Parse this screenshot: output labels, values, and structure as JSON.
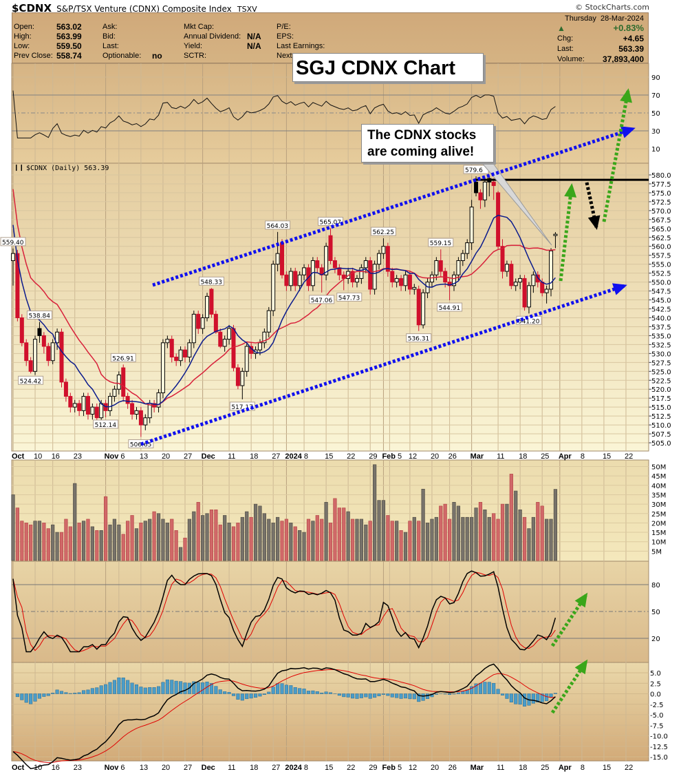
{
  "header": {
    "symbol": "$CDNX",
    "name": "S&P/TSX Venture (CDNX) Composite Index",
    "exchange": "TSXV",
    "watermark": "© StockCharts.com",
    "col1": [
      {
        "label": "Open:",
        "value": "563.02"
      },
      {
        "label": "High:",
        "value": "563.99"
      },
      {
        "label": "Low:",
        "value": "559.50"
      },
      {
        "label": "Prev Close:",
        "value": "558.74"
      }
    ],
    "col2": [
      {
        "label": "Ask:",
        "value": ""
      },
      {
        "label": "Bid:",
        "value": ""
      },
      {
        "label": "Last:",
        "value": ""
      },
      {
        "label": "Optionable:",
        "value": "no"
      }
    ],
    "col3": [
      {
        "label": "Mkt Cap:",
        "value": ""
      },
      {
        "label": "Annual Dividend:",
        "value": "N/A"
      },
      {
        "label": "Yield:",
        "value": "N/A"
      },
      {
        "label": "SCTR:",
        "value": ""
      }
    ],
    "col4": [
      {
        "label": "P/E:"
      },
      {
        "label": "EPS:"
      },
      {
        "label": "Last Earnings:"
      },
      {
        "label": "Next"
      }
    ],
    "day": "Thursday",
    "date": "28-Mar-2024",
    "pct_change": "+0.83%",
    "trend_icon": "triangle-up",
    "chg_label": "Chg:",
    "chg": "+4.65",
    "last_label": "Last:",
    "last": "563.39",
    "volume_label": "Volume:",
    "volume": "37,893,400"
  },
  "annotations": {
    "title_box": "SGJ CDNX Chart",
    "callout_line1": "The CDNX stocks",
    "callout_line2": "are coming alive!"
  },
  "colors": {
    "down": "#d0102c",
    "up": "#000000",
    "ma_fast": "#0a1a8c",
    "ma_slow": "#d8203a",
    "channel_arrows": "#1010ee",
    "bullish_arrows": "#3aa61a",
    "bearish_arrow": "#000000",
    "volume_down": "#d06868",
    "volume_up": "#77726a",
    "macd_hist": "#4a9cc8"
  },
  "chart_data": {
    "type": "candlestick",
    "legend": "$CDNX (Daily) 563.39",
    "ylim": [
      505,
      580
    ],
    "y_ticks": [
      "580.0",
      "577.5",
      "575.0",
      "572.5",
      "570.0",
      "567.5",
      "565.0",
      "562.5",
      "560.0",
      "557.5",
      "555.0",
      "552.5",
      "550.0",
      "547.5",
      "545.0",
      "542.5",
      "540.0",
      "537.5",
      "535.0",
      "532.5",
      "530.0",
      "527.5",
      "525.0",
      "522.5",
      "520.0",
      "517.5",
      "515.0",
      "512.5",
      "510.0",
      "507.5",
      "505.0"
    ],
    "x_ticks": [
      {
        "label": "Oct",
        "day": 0,
        "bold": true
      },
      {
        "label": "10",
        "day": 5
      },
      {
        "label": "16",
        "day": 9
      },
      {
        "label": "23",
        "day": 14
      },
      {
        "label": "Nov",
        "day": 21,
        "bold": true
      },
      {
        "label": "6",
        "day": 24
      },
      {
        "label": "13",
        "day": 29
      },
      {
        "label": "20",
        "day": 34
      },
      {
        "label": "27",
        "day": 39
      },
      {
        "label": "Dec",
        "day": 43,
        "bold": true
      },
      {
        "label": "11",
        "day": 49
      },
      {
        "label": "18",
        "day": 54
      },
      {
        "label": "27",
        "day": 59
      },
      {
        "label": "2024",
        "day": 62,
        "bold": true
      },
      {
        "label": "8",
        "day": 66
      },
      {
        "label": "15",
        "day": 71
      },
      {
        "label": "22",
        "day": 76
      },
      {
        "label": "29",
        "day": 81
      },
      {
        "label": "Feb",
        "day": 84,
        "bold": true
      },
      {
        "label": "5",
        "day": 85.4
      },
      {
        "label": "12",
        "day": 90
      },
      {
        "label": "20",
        "day": 95
      },
      {
        "label": "26",
        "day": 99
      },
      {
        "label": "Mar",
        "day": 104,
        "bold": true
      },
      {
        "label": "11",
        "day": 110
      },
      {
        "label": "18",
        "day": 115
      },
      {
        "label": "25",
        "day": 120
      },
      {
        "label": "Apr",
        "day": 124,
        "bold": true
      },
      {
        "label": "8",
        "day": 129
      },
      {
        "label": "15",
        "day": 134
      },
      {
        "label": "22",
        "day": 139
      }
    ],
    "ohlc": [
      [
        556,
        559.4,
        549,
        558
      ],
      [
        558,
        559,
        539,
        540
      ],
      [
        540,
        541,
        532,
        533
      ],
      [
        533,
        534,
        526.5,
        528
      ],
      [
        528,
        529,
        524.42,
        525
      ],
      [
        525,
        535,
        524,
        534
      ],
      [
        537,
        538.84,
        533,
        535
      ],
      [
        535,
        536,
        530,
        532
      ],
      [
        532,
        533,
        526.5,
        528
      ],
      [
        528,
        534,
        527,
        533
      ],
      [
        533,
        537,
        531,
        536
      ],
      [
        536,
        537,
        520.5,
        522
      ],
      [
        522,
        523,
        516.5,
        518
      ],
      [
        518,
        519,
        513.5,
        515
      ],
      [
        515,
        517,
        513.5,
        516
      ],
      [
        516,
        517,
        512.5,
        514
      ],
      [
        514,
        519,
        512.5,
        518
      ],
      [
        518,
        519,
        511.5,
        513
      ],
      [
        513,
        516,
        511.5,
        515
      ],
      [
        515,
        516,
        510.5,
        512
      ],
      [
        512,
        517,
        510.5,
        516
      ],
      [
        516,
        517,
        512.14,
        514
      ],
      [
        514,
        519,
        512.5,
        518
      ],
      [
        518,
        521,
        516.5,
        520
      ],
      [
        520,
        525,
        518.5,
        524
      ],
      [
        526,
        526.91,
        516.5,
        518
      ],
      [
        518,
        519,
        514.5,
        516
      ],
      [
        516,
        517,
        511.5,
        513
      ],
      [
        513,
        515,
        511.5,
        514
      ],
      [
        514,
        515,
        506.65,
        510
      ],
      [
        510,
        513,
        508.5,
        512
      ],
      [
        512,
        517,
        510.5,
        516
      ],
      [
        516,
        517,
        513.5,
        515
      ],
      [
        515,
        520,
        513.5,
        519
      ],
      [
        519,
        534,
        517.5,
        533
      ],
      [
        533,
        535,
        531.5,
        534
      ],
      [
        534,
        535,
        527.5,
        529
      ],
      [
        529,
        530,
        526.5,
        528
      ],
      [
        528,
        532,
        526.5,
        531
      ],
      [
        531,
        532,
        527.5,
        529
      ],
      [
        529,
        534,
        527.5,
        533
      ],
      [
        533,
        542,
        531.5,
        541
      ],
      [
        541,
        542,
        535.5,
        537
      ],
      [
        537,
        541,
        535.5,
        540
      ],
      [
        540,
        547,
        539,
        546
      ],
      [
        548,
        548.33,
        540,
        541
      ],
      [
        541,
        542,
        535.5,
        536
      ],
      [
        536,
        537,
        531.5,
        532
      ],
      [
        532,
        535,
        530.5,
        534
      ],
      [
        534,
        538,
        532.5,
        537
      ],
      [
        537,
        538,
        525,
        526
      ],
      [
        526,
        527,
        520,
        521
      ],
      [
        521,
        526,
        517.17,
        525
      ],
      [
        525,
        533,
        523.5,
        532
      ],
      [
        532,
        533,
        528.5,
        530
      ],
      [
        530,
        532,
        528.5,
        531
      ],
      [
        531,
        534,
        529.5,
        533
      ],
      [
        533,
        537,
        531.5,
        536
      ],
      [
        536,
        543,
        534.5,
        542
      ],
      [
        542,
        556,
        540.5,
        555
      ],
      [
        555,
        564.03,
        553,
        558
      ],
      [
        561,
        562,
        551,
        552
      ],
      [
        552,
        553,
        547.5,
        549
      ],
      [
        549,
        554,
        547.5,
        553
      ],
      [
        553,
        554,
        547.5,
        549
      ],
      [
        549,
        553,
        547.5,
        552
      ],
      [
        552,
        555,
        550.5,
        554
      ],
      [
        554,
        555,
        547.5,
        549
      ],
      [
        549,
        557,
        547.5,
        556
      ],
      [
        556,
        557,
        552.5,
        554
      ],
      [
        554,
        555,
        547.06,
        552
      ],
      [
        552,
        561,
        550.5,
        560
      ],
      [
        563,
        565.07,
        555,
        556
      ],
      [
        556,
        557,
        552.5,
        554
      ],
      [
        554,
        555,
        550.5,
        552
      ],
      [
        552,
        553,
        547.73,
        551
      ],
      [
        551,
        554,
        549.5,
        553
      ],
      [
        553,
        554,
        548.5,
        550
      ],
      [
        550,
        552,
        548.5,
        551
      ],
      [
        551,
        555,
        549.5,
        554
      ],
      [
        554,
        557,
        552.5,
        556
      ],
      [
        556,
        557,
        546.5,
        548
      ],
      [
        548,
        556,
        546.5,
        555
      ],
      [
        555,
        559,
        553.5,
        558
      ],
      [
        558,
        562.25,
        556.5,
        560
      ],
      [
        560,
        561,
        551.5,
        553
      ],
      [
        553,
        554,
        548.5,
        550
      ],
      [
        550,
        552,
        548.5,
        551
      ],
      [
        551,
        552,
        547.5,
        549
      ],
      [
        549,
        553,
        547.5,
        552
      ],
      [
        552,
        553,
        546.5,
        548
      ],
      [
        548,
        549.5,
        546.5,
        548.5
      ],
      [
        548,
        549,
        536.31,
        538
      ],
      [
        538,
        548,
        537,
        547
      ],
      [
        547,
        551,
        545.5,
        550
      ],
      [
        550,
        553,
        548.5,
        552
      ],
      [
        552,
        557,
        550.5,
        556
      ],
      [
        556,
        559.15,
        551.5,
        553
      ],
      [
        553,
        554,
        548.5,
        550
      ],
      [
        550,
        551,
        544.91,
        549
      ],
      [
        549,
        553,
        547.5,
        552
      ],
      [
        552,
        557,
        550.5,
        556
      ],
      [
        556,
        559,
        554.5,
        558
      ],
      [
        558,
        562,
        556.5,
        561
      ],
      [
        561,
        573,
        559,
        571
      ],
      [
        578,
        579.6,
        574,
        575
      ],
      [
        575,
        576,
        570.5,
        573
      ],
      [
        573,
        579,
        571,
        578
      ],
      [
        579,
        579.6,
        574,
        578
      ],
      [
        578,
        579,
        573,
        577
      ],
      [
        575,
        575.5,
        559,
        560
      ],
      [
        560,
        562,
        551,
        553
      ],
      [
        553,
        556,
        551.5,
        555
      ],
      [
        555,
        556,
        548,
        549
      ],
      [
        549,
        551,
        547.5,
        550
      ],
      [
        550,
        552,
        548,
        551
      ],
      [
        551,
        552,
        542,
        543
      ],
      [
        543,
        550,
        541.2,
        549
      ],
      [
        549,
        553,
        547,
        552
      ],
      [
        552,
        553,
        548.5,
        550
      ],
      [
        550,
        551,
        546,
        547
      ],
      [
        547,
        549,
        544,
        548
      ],
      [
        548,
        559.5,
        546,
        558.74
      ],
      [
        563.02,
        563.99,
        559.5,
        563.39
      ]
    ],
    "price_labels": [
      {
        "text": "559.40",
        "day": 0,
        "at": "high"
      },
      {
        "text": "524.42",
        "day": 4,
        "at": "low"
      },
      {
        "text": "538.84",
        "day": 6,
        "at": "high"
      },
      {
        "text": "512.14",
        "day": 21,
        "at": "low"
      },
      {
        "text": "526.91",
        "day": 25,
        "at": "high"
      },
      {
        "text": "506.65",
        "day": 29,
        "at": "low"
      },
      {
        "text": "548.33",
        "day": 45,
        "at": "high"
      },
      {
        "text": "517.17",
        "day": 52,
        "at": "low"
      },
      {
        "text": "564.03",
        "day": 60,
        "at": "high"
      },
      {
        "text": "547.06",
        "day": 70,
        "at": "low"
      },
      {
        "text": "565.07",
        "day": 72,
        "at": "high"
      },
      {
        "text": "547.73",
        "day": 75,
        "at": "low"
      },
      {
        "text": "562.25",
        "day": 84,
        "at": "high"
      },
      {
        "text": "536.31",
        "day": 92,
        "at": "low"
      },
      {
        "text": "559.15",
        "day": 97,
        "at": "high"
      },
      {
        "text": "544.91",
        "day": 99,
        "at": "low"
      },
      {
        "text": "579.6",
        "day": 105,
        "at": "high"
      },
      {
        "text": "541.20",
        "day": 117,
        "at": "low"
      }
    ],
    "volume_millions": [
      35,
      28,
      21,
      20,
      19,
      21,
      21,
      20,
      17,
      19,
      15,
      15,
      22,
      18,
      41,
      20,
      21,
      22,
      18,
      16,
      16,
      34,
      19,
      22,
      19,
      14,
      21,
      24,
      17,
      20,
      21,
      22,
      26,
      25,
      22,
      20,
      22,
      16,
      7,
      12,
      22,
      26,
      31,
      24,
      25,
      27,
      27,
      19,
      24,
      20,
      18,
      20,
      23,
      26,
      23,
      30,
      29,
      25,
      22,
      20,
      23,
      21,
      22,
      20,
      18,
      16,
      15,
      22,
      21,
      24,
      22,
      31,
      20,
      33,
      28,
      28,
      26,
      22,
      22,
      22,
      19,
      21,
      51,
      32,
      32,
      24,
      21,
      21,
      16,
      15,
      21,
      23,
      21,
      38,
      20,
      22,
      23,
      29,
      30,
      22,
      31,
      29,
      23,
      23,
      23,
      28,
      31,
      27,
      23,
      25,
      22,
      30,
      30,
      46,
      37,
      27,
      23,
      17,
      23,
      31,
      29,
      22,
      22,
      37.89
    ],
    "volume_ticks": [
      "50M",
      "45M",
      "40M",
      "35M",
      "30M",
      "25M",
      "20M",
      "15M",
      "10M",
      "5M"
    ],
    "upper_panel_ticks": [
      "90",
      "70",
      "50",
      "30",
      "10"
    ],
    "stoch_ticks": [
      "80",
      "50",
      "20"
    ],
    "macd_ticks": [
      "5.0",
      "2.5",
      "0.0",
      "-2.5",
      "-5.0",
      "-7.5",
      "-10.0",
      "-12.5",
      "-15.0"
    ],
    "resistance_level": 579.6
  }
}
